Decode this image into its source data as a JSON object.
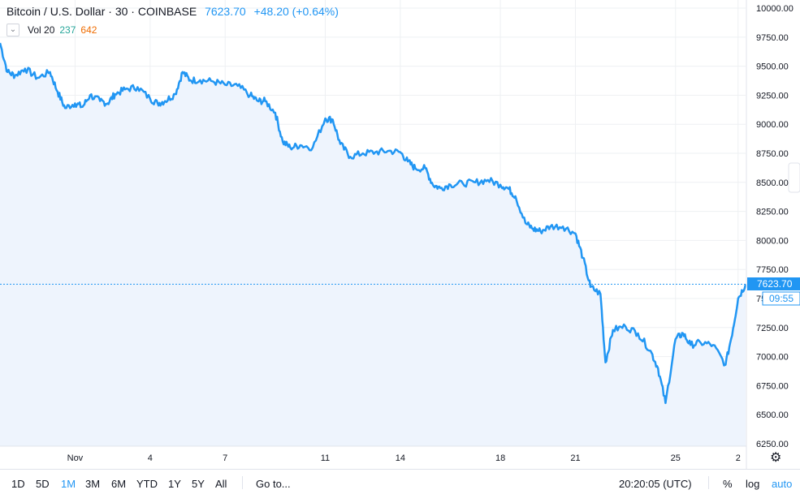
{
  "legend": {
    "symbol": "Bitcoin / U.S. Dollar · 30 · COINBASE",
    "price": "7623.70",
    "change": "+48.20 (+0.64%)",
    "volume_label": "Vol 20",
    "volume_value_1": "237",
    "volume_value_2": "642"
  },
  "price_scale": {
    "current_price_label": "7623.70",
    "countdown_label": "09:55"
  },
  "bottom_bar": {
    "timeframes": [
      "1D",
      "5D",
      "1M",
      "3M",
      "6M",
      "YTD",
      "1Y",
      "5Y",
      "All"
    ],
    "active_timeframe": "1M",
    "goto_label": "Go to...",
    "clock": "20:20:05 (UTC)",
    "percent_label": "%",
    "log_label": "log",
    "auto_label": "auto"
  },
  "colors": {
    "line": "#2196f3",
    "area": "#eef4fd",
    "grid": "#eef0f3",
    "volume_up": "#7fcfc7",
    "volume_down": "#f29ca1",
    "accent": "#2196f3"
  },
  "chart_data": {
    "type": "area",
    "ylim": [
      6250,
      10000
    ],
    "yticks": [
      "10000.00",
      "9750.00",
      "9500.00",
      "9250.00",
      "9000.00",
      "8750.00",
      "8500.00",
      "8250.00",
      "8000.00",
      "7750.00",
      "7500.00",
      "7250.00",
      "7000.00",
      "6750.00",
      "6500.00",
      "6250.00"
    ],
    "xticks": [
      "Nov",
      "4",
      "7",
      "11",
      "14",
      "18",
      "21",
      "25",
      "2"
    ],
    "x_start_day": 29.0,
    "x_end_day": 58.8,
    "xtick_days": [
      32,
      35,
      38,
      42,
      45,
      49,
      52,
      56,
      58.5
    ],
    "series": [
      {
        "points": [
          [
            29.0,
            9700
          ],
          [
            29.3,
            9450
          ],
          [
            29.6,
            9420
          ],
          [
            30.0,
            9480
          ],
          [
            30.5,
            9400
          ],
          [
            31.0,
            9450
          ],
          [
            31.3,
            9280
          ],
          [
            31.6,
            9140
          ],
          [
            32.0,
            9180
          ],
          [
            32.3,
            9150
          ],
          [
            32.6,
            9250
          ],
          [
            33.0,
            9200
          ],
          [
            33.3,
            9180
          ],
          [
            33.6,
            9260
          ],
          [
            34.0,
            9300
          ],
          [
            34.5,
            9320
          ],
          [
            35.0,
            9220
          ],
          [
            35.3,
            9180
          ],
          [
            35.6,
            9200
          ],
          [
            36.0,
            9260
          ],
          [
            36.3,
            9450
          ],
          [
            36.6,
            9380
          ],
          [
            37.0,
            9380
          ],
          [
            37.5,
            9370
          ],
          [
            38.0,
            9340
          ],
          [
            38.5,
            9330
          ],
          [
            39.0,
            9250
          ],
          [
            39.3,
            9200
          ],
          [
            39.6,
            9200
          ],
          [
            40.0,
            9100
          ],
          [
            40.3,
            8850
          ],
          [
            40.6,
            8800
          ],
          [
            41.0,
            8820
          ],
          [
            41.5,
            8800
          ],
          [
            42.0,
            9050
          ],
          [
            42.3,
            9040
          ],
          [
            42.6,
            8830
          ],
          [
            43.0,
            8720
          ],
          [
            43.5,
            8750
          ],
          [
            44.0,
            8760
          ],
          [
            44.5,
            8770
          ],
          [
            45.0,
            8760
          ],
          [
            45.3,
            8680
          ],
          [
            45.6,
            8620
          ],
          [
            46.0,
            8620
          ],
          [
            46.3,
            8480
          ],
          [
            46.6,
            8450
          ],
          [
            47.0,
            8480
          ],
          [
            47.5,
            8490
          ],
          [
            48.0,
            8500
          ],
          [
            48.5,
            8520
          ],
          [
            49.0,
            8480
          ],
          [
            49.3,
            8450
          ],
          [
            49.6,
            8380
          ],
          [
            50.0,
            8150
          ],
          [
            50.3,
            8100
          ],
          [
            50.6,
            8080
          ],
          [
            51.0,
            8120
          ],
          [
            51.5,
            8120
          ],
          [
            52.0,
            8060
          ],
          [
            52.3,
            7850
          ],
          [
            52.6,
            7600
          ],
          [
            53.0,
            7540
          ],
          [
            53.2,
            6950
          ],
          [
            53.5,
            7230
          ],
          [
            54.0,
            7260
          ],
          [
            54.5,
            7200
          ],
          [
            55.0,
            7050
          ],
          [
            55.3,
            6900
          ],
          [
            55.6,
            6600
          ],
          [
            56.0,
            7150
          ],
          [
            56.3,
            7200
          ],
          [
            56.6,
            7100
          ],
          [
            57.0,
            7120
          ],
          [
            57.5,
            7100
          ],
          [
            58.0,
            6930
          ],
          [
            58.3,
            7240
          ],
          [
            58.5,
            7500
          ],
          [
            58.8,
            7623
          ]
        ]
      }
    ]
  }
}
